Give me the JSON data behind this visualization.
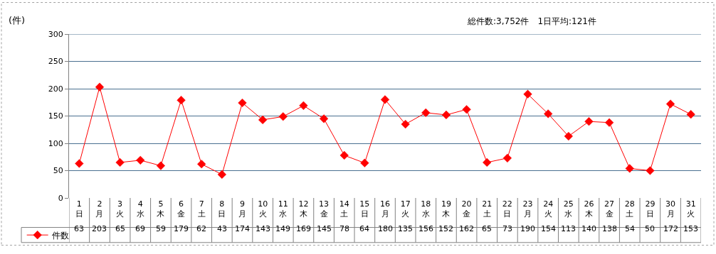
{
  "chart_data": {
    "type": "line",
    "ylabel": "(件)",
    "annotations": [
      "総件数:3,752件　1日平均:121件"
    ],
    "categories": [
      "1\n日",
      "2\n月",
      "3\n火",
      "4\n水",
      "5\n木",
      "6\n金",
      "7\n土",
      "8\n日",
      "9\n月",
      "10\n火",
      "11\n水",
      "12\n木",
      "13\n金",
      "14\n土",
      "15\n日",
      "16\n月",
      "17\n火",
      "18\n水",
      "19\n木",
      "20\n金",
      "21\n土",
      "22\n日",
      "23\n月",
      "24\n火",
      "25\n水",
      "26\n木",
      "27\n金",
      "28\n土",
      "29\n日",
      "30\n月",
      "31\n火"
    ],
    "series": [
      {
        "name": "件数",
        "color": "#ff0000",
        "values": [
          63,
          203,
          65,
          69,
          59,
          179,
          62,
          43,
          174,
          143,
          149,
          169,
          145,
          78,
          64,
          180,
          135,
          156,
          152,
          162,
          65,
          73,
          190,
          154,
          113,
          140,
          138,
          54,
          50,
          172,
          153
        ]
      }
    ],
    "ylim": [
      0,
      300
    ],
    "yticks": [
      0,
      50,
      100,
      150,
      200,
      250,
      300
    ],
    "grid": "y",
    "legend": "bottom left",
    "marker": "diamond",
    "line_style": "solid",
    "data_labels": true
  }
}
